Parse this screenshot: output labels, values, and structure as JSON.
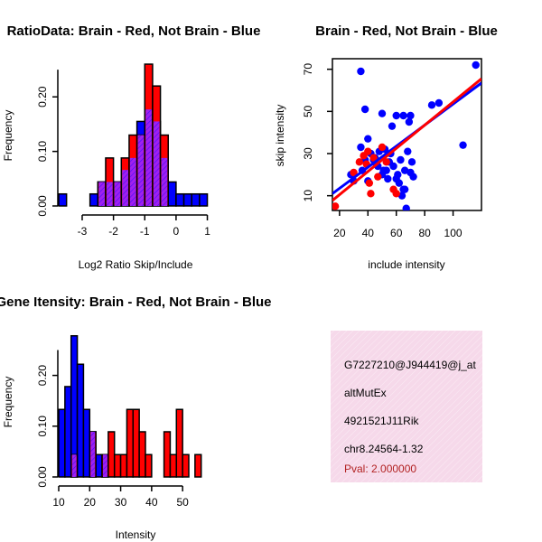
{
  "colors": {
    "red": "#ff0000",
    "blue": "#0000ff",
    "overlap": "#a020f0",
    "info_bg": "#f6d9ea",
    "pval": "#b22222"
  },
  "chart_data": [
    {
      "type": "histogram",
      "title": "RatioData: Brain - Red, Not Brain - Blue",
      "xlabel": "Log2 Ratio Skip/Include",
      "ylabel": "Frequency",
      "xlim": [
        -3.75,
        1.1
      ],
      "ylim": [
        0,
        0.27
      ],
      "xticks": [
        "-3",
        "-2",
        "-1",
        "0",
        "1"
      ],
      "yticks": [
        "0.00",
        "0.10",
        "0.20"
      ],
      "bin_edges": [
        -3.75,
        -3.5,
        -3.25,
        -3.0,
        -2.75,
        -2.5,
        -2.25,
        -2.0,
        -1.75,
        -1.5,
        -1.25,
        -1.0,
        -0.75,
        -0.5,
        -0.25,
        0.0,
        0.25,
        0.5,
        0.75,
        1.0
      ],
      "series": [
        {
          "name": "Not Brain",
          "color": "blue",
          "values": [
            0.022,
            0,
            0,
            0,
            0.022,
            0.044,
            0.044,
            0.044,
            0.066,
            0.088,
            0.155,
            0.177,
            0.155,
            0.088,
            0.044,
            0.022,
            0.022,
            0.022,
            0.022
          ]
        },
        {
          "name": "Brain",
          "color": "red",
          "values": [
            0,
            0,
            0,
            0,
            0,
            0.044,
            0.088,
            0.044,
            0.088,
            0.13,
            0.13,
            0.26,
            0.22,
            0.13,
            0,
            0,
            0,
            0,
            0
          ]
        }
      ]
    },
    {
      "type": "scatter",
      "title": "Brain - Red, Not Brain - Blue",
      "xlabel": "include intensity",
      "ylabel": "skip intensity",
      "xlim": [
        15,
        120
      ],
      "ylim": [
        3,
        75
      ],
      "xticks": [
        "20",
        "40",
        "60",
        "80",
        "100"
      ],
      "yticks": [
        "10",
        "30",
        "50",
        "70"
      ],
      "series": [
        {
          "name": "Not Brain",
          "color": "blue",
          "x": [
            28,
            35,
            38,
            42,
            46,
            50,
            51,
            52,
            54,
            55,
            56,
            57,
            58,
            60,
            61,
            62,
            63,
            64,
            65,
            66,
            67,
            68,
            69,
            70,
            71,
            72,
            35,
            40,
            45,
            48,
            65,
            70,
            85,
            90,
            107,
            116,
            30,
            44,
            47,
            53,
            60,
            66,
            40,
            36,
            38,
            50
          ],
          "y": [
            20,
            69,
            51,
            30,
            25,
            49,
            22,
            32,
            18,
            26,
            30,
            43,
            24,
            48,
            20,
            16,
            27,
            10,
            13,
            22,
            4,
            31,
            45,
            21,
            26,
            19,
            33,
            17,
            28,
            31,
            48,
            48,
            53,
            54,
            34,
            72,
            17,
            27,
            24,
            22,
            18,
            13,
            37,
            22,
            27,
            20
          ],
          "fit": {
            "slope": 0.5,
            "intercept": 3.5
          }
        },
        {
          "name": "Brain",
          "color": "red",
          "x": [
            17,
            30,
            34,
            37,
            39,
            40,
            41,
            42,
            44,
            47,
            50,
            53,
            58,
            60
          ],
          "y": [
            5,
            21,
            26,
            29,
            25,
            31,
            16,
            11,
            28,
            19,
            33,
            26,
            13,
            11
          ],
          "fit": {
            "slope": 0.55,
            "intercept": -0.5
          }
        }
      ]
    },
    {
      "type": "histogram",
      "title": "Gene Itensity: Brain - Red, Not Brain - Blue",
      "xlabel": "Intensity",
      "ylabel": "Frequency",
      "xlim": [
        10,
        59
      ],
      "ylim": [
        0,
        0.29
      ],
      "xticks": [
        "10",
        "20",
        "30",
        "40",
        "50"
      ],
      "yticks": [
        "0.00",
        "0.10",
        "0.20"
      ],
      "bin_edges": [
        10,
        12,
        14,
        16,
        18,
        20,
        22,
        24,
        26,
        28,
        30,
        32,
        34,
        36,
        38,
        40,
        42,
        44,
        46,
        48,
        50,
        52,
        54,
        56,
        58
      ],
      "series": [
        {
          "name": "Not Brain",
          "color": "blue",
          "values": [
            0.133,
            0.178,
            0.278,
            0.222,
            0.133,
            0.089,
            0.044,
            0.044,
            0,
            0,
            0,
            0,
            0,
            0,
            0,
            0,
            0,
            0,
            0,
            0,
            0,
            0,
            0,
            0
          ]
        },
        {
          "name": "Brain",
          "color": "red",
          "values": [
            0,
            0,
            0.044,
            0,
            0,
            0.089,
            0,
            0.044,
            0.089,
            0.044,
            0.044,
            0.133,
            0.133,
            0.089,
            0.044,
            0,
            0,
            0.089,
            0.044,
            0.133,
            0.044,
            0,
            0.044,
            0
          ]
        }
      ]
    }
  ],
  "info_box": {
    "lines": [
      "G7227210@J944419@j_at",
      "altMutEx",
      "4921521J11Rik",
      "chr8.24564-1.32"
    ],
    "pval": "Pval: 2.000000"
  }
}
